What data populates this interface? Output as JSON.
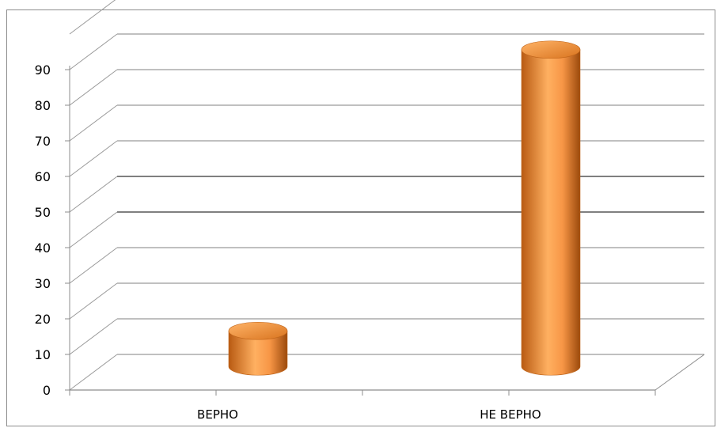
{
  "chart_data": {
    "type": "bar",
    "categories": [
      "ВЕРНО",
      "НЕ ВЕРНО"
    ],
    "values": [
      10,
      89
    ],
    "ylim": [
      0,
      100
    ],
    "yticks": [
      0,
      10,
      20,
      30,
      40,
      50,
      60,
      70,
      80,
      90
    ],
    "bar_shape": "cylinder",
    "bar_color": "#F79646",
    "grid": true,
    "legend": "none"
  }
}
